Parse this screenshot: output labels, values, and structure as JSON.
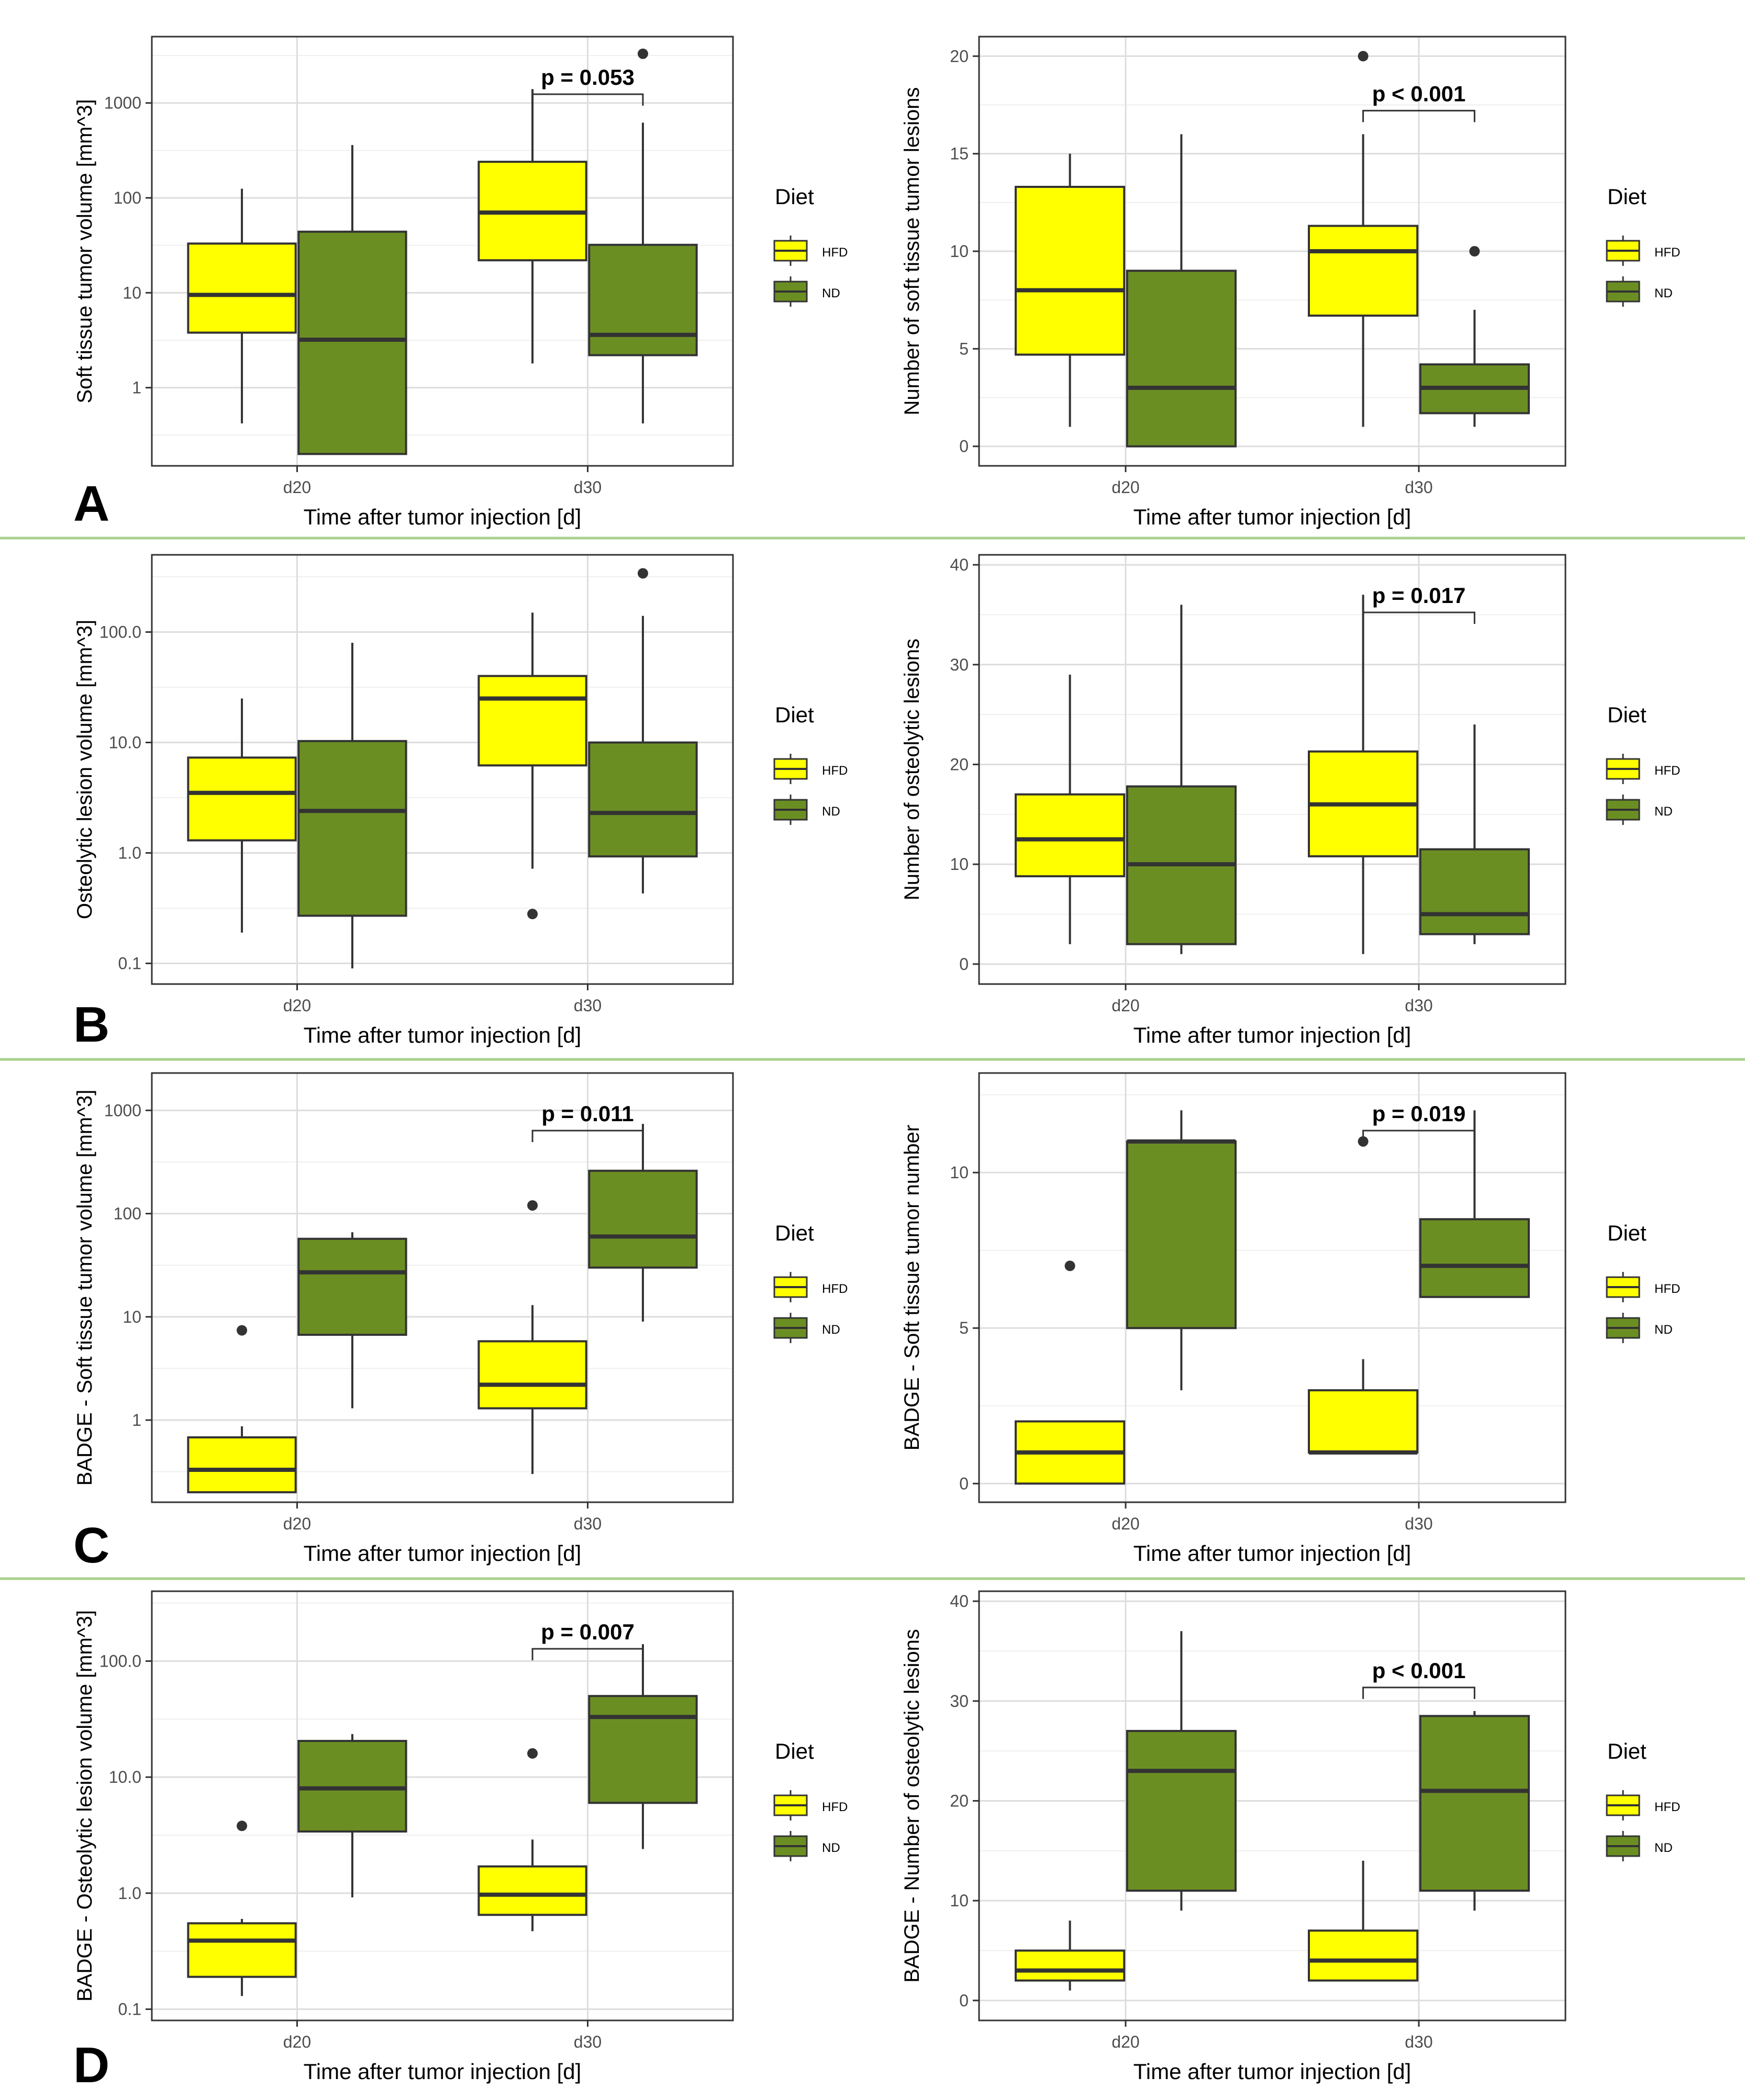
{
  "figure": {
    "panels": [
      {
        "letter": "A"
      },
      {
        "letter": "B"
      },
      {
        "letter": "C"
      },
      {
        "letter": "D"
      }
    ],
    "colors": {
      "HFD": "#ffff00",
      "ND": "#6b8e23",
      "separator": "#a9d18e"
    }
  },
  "chart_data": [
    {
      "type": "box",
      "panel": "A",
      "scale": "log",
      "ylabel": "Soft tissue tumor volume [mm^3]",
      "xlabel": "Time after tumor injection [d]",
      "categories": [
        "d20",
        "d30"
      ],
      "ylim": [
        0.15,
        5000
      ],
      "yticks": [
        1,
        10,
        100,
        1000
      ],
      "ytick_labels": [
        "1",
        "10",
        "100",
        "1000"
      ],
      "legend": {
        "title": "Diet",
        "entries": [
          "HFD",
          "ND"
        ],
        "position": "right"
      },
      "series": [
        {
          "name": "HFD",
          "boxes": [
            {
              "min": 0.42,
              "q1": 3.8,
              "median": 9.5,
              "q3": 33,
              "max": 125,
              "outliers": []
            },
            {
              "min": 1.8,
              "q1": 22,
              "median": 70,
              "q3": 240,
              "max": 1400,
              "outliers": []
            }
          ]
        },
        {
          "name": "ND",
          "boxes": [
            {
              "min": 0.2,
              "q1": 0.2,
              "median": 3.2,
              "q3": 44,
              "max": 360,
              "outliers": []
            },
            {
              "min": 0.42,
              "q1": 2.2,
              "median": 3.6,
              "q3": 32,
              "max": 620,
              "outliers": [
                3300
              ]
            }
          ]
        }
      ],
      "annotation": {
        "text": "p = 0.053",
        "category": "d30"
      }
    },
    {
      "type": "box",
      "panel": "A",
      "scale": "linear",
      "ylabel": "Number of soft tissue tumor lesions",
      "xlabel": "Time after tumor injection [d]",
      "categories": [
        "d20",
        "d30"
      ],
      "ylim": [
        -1,
        21
      ],
      "yticks": [
        0,
        5,
        10,
        15,
        20
      ],
      "ytick_labels": [
        "0",
        "5",
        "10",
        "15",
        "20"
      ],
      "legend": {
        "title": "Diet",
        "entries": [
          "HFD",
          "ND"
        ],
        "position": "right"
      },
      "series": [
        {
          "name": "HFD",
          "boxes": [
            {
              "min": 1,
              "q1": 4.7,
              "median": 8,
              "q3": 13.3,
              "max": 15,
              "outliers": []
            },
            {
              "min": 1,
              "q1": 6.7,
              "median": 10,
              "q3": 11.3,
              "max": 16,
              "outliers": [
                20
              ]
            }
          ]
        },
        {
          "name": "ND",
          "boxes": [
            {
              "min": 0,
              "q1": 0,
              "median": 3,
              "q3": 9,
              "max": 16,
              "outliers": []
            },
            {
              "min": 1,
              "q1": 1.7,
              "median": 3,
              "q3": 4.2,
              "max": 7,
              "outliers": [
                10
              ]
            }
          ]
        }
      ],
      "annotation": {
        "text": "p < 0.001",
        "category": "d30"
      }
    },
    {
      "type": "box",
      "panel": "B",
      "scale": "log",
      "ylabel": "Osteolytic lesion volume [mm^3]",
      "xlabel": "Time after tumor injection [d]",
      "categories": [
        "d20",
        "d30"
      ],
      "ylim": [
        0.065,
        500
      ],
      "yticks": [
        0.1,
        1,
        10,
        100
      ],
      "ytick_labels": [
        "0.1",
        "1.0",
        "10.0",
        "100.0"
      ],
      "legend": {
        "title": "Diet",
        "entries": [
          "HFD",
          "ND"
        ],
        "position": "right"
      },
      "series": [
        {
          "name": "HFD",
          "boxes": [
            {
              "min": 0.19,
              "q1": 1.3,
              "median": 3.5,
              "q3": 7.3,
              "max": 25,
              "outliers": []
            },
            {
              "min": 0.72,
              "q1": 6.2,
              "median": 25,
              "q3": 40,
              "max": 150,
              "outliers": [
                0.28
              ]
            }
          ]
        },
        {
          "name": "ND",
          "boxes": [
            {
              "min": 0.09,
              "q1": 0.27,
              "median": 2.4,
              "q3": 10.3,
              "max": 80,
              "outliers": []
            },
            {
              "min": 0.43,
              "q1": 0.93,
              "median": 2.3,
              "q3": 10,
              "max": 140,
              "outliers": [
                340
              ]
            }
          ]
        }
      ]
    },
    {
      "type": "box",
      "panel": "B",
      "scale": "linear",
      "ylabel": "Number of osteolytic lesions",
      "xlabel": "Time after tumor injection [d]",
      "categories": [
        "d20",
        "d30"
      ],
      "ylim": [
        -2,
        41
      ],
      "yticks": [
        0,
        10,
        20,
        30,
        40
      ],
      "ytick_labels": [
        "0",
        "10",
        "20",
        "30",
        "40"
      ],
      "legend": {
        "title": "Diet",
        "entries": [
          "HFD",
          "ND"
        ],
        "position": "right"
      },
      "series": [
        {
          "name": "HFD",
          "boxes": [
            {
              "min": 2,
              "q1": 8.8,
              "median": 12.5,
              "q3": 17,
              "max": 29,
              "outliers": []
            },
            {
              "min": 1,
              "q1": 10.8,
              "median": 16,
              "q3": 21.3,
              "max": 37,
              "outliers": []
            }
          ]
        },
        {
          "name": "ND",
          "boxes": [
            {
              "min": 1,
              "q1": 2,
              "median": 10,
              "q3": 17.8,
              "max": 36,
              "outliers": []
            },
            {
              "min": 2,
              "q1": 3,
              "median": 5,
              "q3": 11.5,
              "max": 24,
              "outliers": []
            }
          ]
        }
      ],
      "annotation": {
        "text": "p = 0.017",
        "category": "d30"
      }
    },
    {
      "type": "box",
      "panel": "C",
      "scale": "log",
      "ylabel": "BADGE - Soft tissue tumor volume [mm^3]",
      "xlabel": "Time after tumor injection [d]",
      "categories": [
        "d20",
        "d30"
      ],
      "ylim": [
        0.16,
        2300
      ],
      "yticks": [
        1,
        10,
        100,
        1000
      ],
      "ytick_labels": [
        "1",
        "10",
        "100",
        "1000"
      ],
      "legend": {
        "title": "Diet",
        "entries": [
          "HFD",
          "ND"
        ],
        "position": "right"
      },
      "series": [
        {
          "name": "HFD",
          "boxes": [
            {
              "min": 0.2,
              "q1": 0.2,
              "median": 0.33,
              "q3": 0.68,
              "max": 0.87,
              "outliers": [
                7.4
              ]
            },
            {
              "min": 0.3,
              "q1": 1.3,
              "median": 2.2,
              "q3": 5.8,
              "max": 13,
              "outliers": [
                120
              ]
            }
          ]
        },
        {
          "name": "ND",
          "boxes": [
            {
              "min": 1.3,
              "q1": 6.7,
              "median": 27,
              "q3": 57,
              "max": 66,
              "outliers": []
            },
            {
              "min": 9,
              "q1": 30,
              "median": 60,
              "q3": 260,
              "max": 740,
              "outliers": []
            }
          ]
        }
      ],
      "annotation": {
        "text": "p = 0.011",
        "category": "d30"
      }
    },
    {
      "type": "box",
      "panel": "C",
      "scale": "linear",
      "ylabel": "BADGE - Soft tissue tumor number",
      "xlabel": "Time after tumor injection [d]",
      "categories": [
        "d20",
        "d30"
      ],
      "ylim": [
        -0.6,
        13.2
      ],
      "yticks": [
        0,
        5,
        10
      ],
      "ytick_labels": [
        "0",
        "5",
        "10"
      ],
      "legend": {
        "title": "Diet",
        "entries": [
          "HFD",
          "ND"
        ],
        "position": "right"
      },
      "series": [
        {
          "name": "HFD",
          "boxes": [
            {
              "min": 0,
              "q1": 0,
              "median": 1,
              "q3": 2,
              "max": 2,
              "outliers": [
                7
              ]
            },
            {
              "min": 1,
              "q1": 1,
              "median": 1,
              "q3": 3,
              "max": 4,
              "outliers": [
                11
              ]
            }
          ]
        },
        {
          "name": "ND",
          "boxes": [
            {
              "min": 3,
              "q1": 5,
              "median": 11,
              "q3": 11,
              "max": 12,
              "outliers": []
            },
            {
              "min": 6,
              "q1": 6,
              "median": 7,
              "q3": 8.5,
              "max": 12,
              "outliers": []
            }
          ]
        }
      ],
      "annotation": {
        "text": "p = 0.019",
        "category": "d30"
      }
    },
    {
      "type": "box",
      "panel": "D",
      "scale": "log",
      "ylabel": "BADGE - Osteolytic lesion volume [mm^3]",
      "xlabel": "Time after tumor injection [d]",
      "categories": [
        "d20",
        "d30"
      ],
      "ylim": [
        0.08,
        400
      ],
      "yticks": [
        0.1,
        1,
        10,
        100
      ],
      "ytick_labels": [
        "0.1",
        "1.0",
        "10.0",
        "100.0"
      ],
      "legend": {
        "title": "Diet",
        "entries": [
          "HFD",
          "ND"
        ],
        "position": "right"
      },
      "series": [
        {
          "name": "HFD",
          "boxes": [
            {
              "min": 0.13,
              "q1": 0.19,
              "median": 0.39,
              "q3": 0.55,
              "max": 0.6,
              "outliers": [
                3.8
              ]
            },
            {
              "min": 0.47,
              "q1": 0.65,
              "median": 0.97,
              "q3": 1.7,
              "max": 2.9,
              "outliers": [
                16
              ]
            }
          ]
        },
        {
          "name": "ND",
          "boxes": [
            {
              "min": 0.92,
              "q1": 3.4,
              "median": 8,
              "q3": 20.5,
              "max": 23.5,
              "outliers": []
            },
            {
              "min": 2.4,
              "q1": 6,
              "median": 33,
              "q3": 50,
              "max": 140,
              "outliers": []
            }
          ]
        }
      ],
      "annotation": {
        "text": "p = 0.007",
        "category": "d30"
      }
    },
    {
      "type": "box",
      "panel": "D",
      "scale": "linear",
      "ylabel": "BADGE - Number of osteolytic lesions",
      "xlabel": "Time after tumor injection [d]",
      "categories": [
        "d20",
        "d30"
      ],
      "ylim": [
        -2,
        41
      ],
      "yticks": [
        0,
        10,
        20,
        30,
        40
      ],
      "ytick_labels": [
        "0",
        "10",
        "20",
        "30",
        "40"
      ],
      "legend": {
        "title": "Diet",
        "entries": [
          "HFD",
          "ND"
        ],
        "position": "right"
      },
      "series": [
        {
          "name": "HFD",
          "boxes": [
            {
              "min": 1,
              "q1": 2,
              "median": 3,
              "q3": 5,
              "max": 8,
              "outliers": []
            },
            {
              "min": 2,
              "q1": 2,
              "median": 4,
              "q3": 7,
              "max": 14,
              "outliers": []
            }
          ]
        },
        {
          "name": "ND",
          "boxes": [
            {
              "min": 9,
              "q1": 11,
              "median": 23,
              "q3": 27,
              "max": 37,
              "outliers": []
            },
            {
              "min": 9,
              "q1": 11,
              "median": 21,
              "q3": 28.5,
              "max": 29,
              "outliers": []
            }
          ]
        }
      ],
      "annotation": {
        "text": "p < 0.001",
        "category": "d30"
      }
    }
  ]
}
